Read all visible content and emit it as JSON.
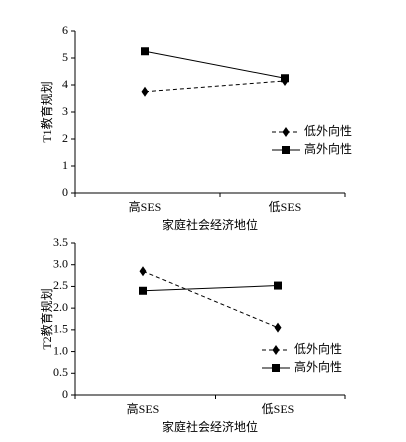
{
  "chart_data": [
    {
      "type": "line",
      "y_label": "T1教育规划",
      "x_label": "家庭社会经济地位",
      "categories": [
        "高SES",
        "低SES"
      ],
      "series": [
        {
          "name": "低外向性",
          "color": "#000000",
          "line_style": "dashed",
          "marker": "diamond",
          "values": [
            3.75,
            4.15
          ]
        },
        {
          "name": "高外向性",
          "color": "#000000",
          "line_style": "solid",
          "marker": "square",
          "values": [
            5.25,
            4.25
          ]
        }
      ],
      "ylim": [
        0,
        6
      ],
      "yticks": [
        0,
        1,
        2,
        3,
        4,
        5,
        6
      ],
      "grid": false,
      "legend": "right"
    },
    {
      "type": "line",
      "y_label": "T2教育规划",
      "x_label": "家庭社会经济地位",
      "categories": [
        "高SES",
        "低SES"
      ],
      "series": [
        {
          "name": "低外向性",
          "color": "#000000",
          "line_style": "dashed",
          "marker": "diamond",
          "values": [
            2.85,
            1.55
          ]
        },
        {
          "name": "高外向性",
          "color": "#000000",
          "line_style": "solid",
          "marker": "square",
          "values": [
            2.4,
            2.52
          ]
        }
      ],
      "ylim": [
        0,
        3.5
      ],
      "yticks": [
        0,
        0.5,
        {
          "value": 1,
          "label": "1.0"
        },
        1.5,
        {
          "value": 2,
          "label": "2.0"
        },
        2.5,
        {
          "value": 3,
          "label": "3.0"
        },
        3.5
      ],
      "grid": false,
      "legend": "lower right"
    }
  ]
}
